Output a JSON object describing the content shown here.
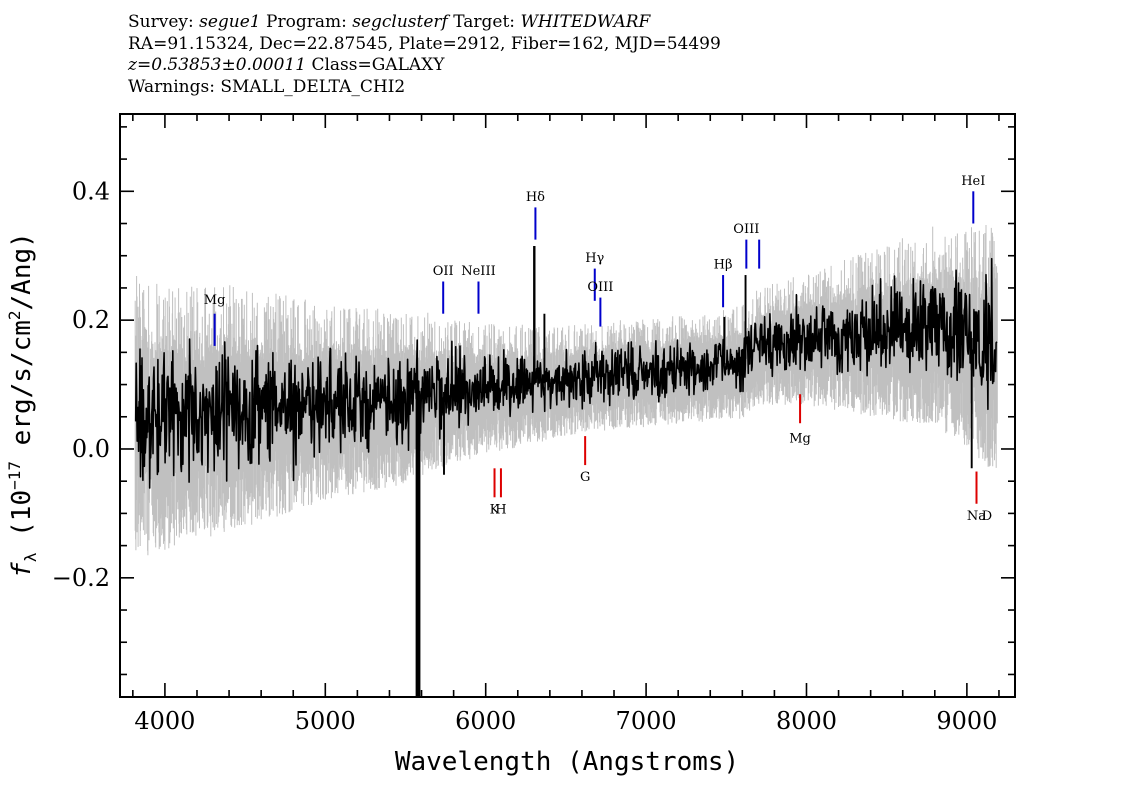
{
  "header": {
    "line1": {
      "survey_label": "Survey: ",
      "survey": "segue1",
      "program_label": " Program: ",
      "program": "segclusterf",
      "target_label": " Target: ",
      "target": "WHITEDWARF"
    },
    "line2": "RA=91.15324, Dec=22.87545, Plate=2912, Fiber=162, MJD=54499",
    "line3": {
      "z": "z=0.53853±0.00011",
      "class": " Class=GALAXY"
    },
    "line4": "Warnings: SMALL_DELTA_CHI2"
  },
  "chart_data": {
    "type": "line",
    "xlabel": "Wavelength (Angstroms)",
    "ylabel_prefix": "f",
    "ylabel_sub": "λ",
    "ylabel_mid": " (10",
    "ylabel_exp": "−17",
    "ylabel_unit": " erg/s/cm",
    "ylabel_unit_exp": "2",
    "ylabel_suffix": "/Ang)",
    "xlim": [
      3720,
      9300
    ],
    "ylim": [
      -0.385,
      0.52
    ],
    "x_ticks": [
      4000,
      5000,
      6000,
      7000,
      8000,
      9000
    ],
    "x_tick_labels": [
      "4000",
      "5000",
      "6000",
      "7000",
      "8000",
      "9000"
    ],
    "y_ticks": [
      -0.2,
      0.0,
      0.2,
      0.4
    ],
    "y_tick_labels": [
      "−0.2",
      "0.0",
      "0.2",
      "0.4"
    ],
    "spectrum_range": [
      3815,
      9190
    ],
    "continuum_points": [
      [
        3815,
        0.05
      ],
      [
        4200,
        0.06
      ],
      [
        4800,
        0.07
      ],
      [
        5400,
        0.08
      ],
      [
        5800,
        0.09
      ],
      [
        6300,
        0.1
      ],
      [
        6800,
        0.115
      ],
      [
        7300,
        0.125
      ],
      [
        7600,
        0.135
      ],
      [
        7700,
        0.16
      ],
      [
        8000,
        0.17
      ],
      [
        8400,
        0.18
      ],
      [
        8800,
        0.19
      ],
      [
        9190,
        0.16
      ]
    ],
    "noise_points": [
      [
        3815,
        0.13
      ],
      [
        4500,
        0.11
      ],
      [
        5000,
        0.09
      ],
      [
        5500,
        0.08
      ],
      [
        6000,
        0.06
      ],
      [
        6500,
        0.05
      ],
      [
        7000,
        0.05
      ],
      [
        7500,
        0.05
      ],
      [
        8000,
        0.06
      ],
      [
        8500,
        0.08
      ],
      [
        9000,
        0.1
      ],
      [
        9190,
        0.12
      ]
    ],
    "features": [
      {
        "x": 5578,
        "y": -0.385,
        "width": 3
      },
      {
        "x": 6303,
        "y": 0.315,
        "width": 1.5
      },
      {
        "x": 6366,
        "y": 0.21,
        "width": 1.2
      },
      {
        "x": 5740,
        "y": -0.04,
        "width": 1.2
      },
      {
        "x": 7488,
        "y": 0.205,
        "width": 1.2
      },
      {
        "x": 7620,
        "y": 0.27,
        "width": 1.2
      },
      {
        "x": 9030,
        "y": -0.03,
        "width": 1.2
      }
    ],
    "emission_lines": [
      {
        "label": "Mg",
        "x": 4310,
        "y0": 0.16,
        "y1": 0.21,
        "label_y": 0.225
      },
      {
        "label": "OII",
        "x": 5735,
        "y0": 0.21,
        "y1": 0.26,
        "label_y": 0.27
      },
      {
        "label": "NeIII",
        "x": 5955,
        "y0": 0.21,
        "y1": 0.26,
        "label_y": 0.27
      },
      {
        "label": "Hδ",
        "x": 6310,
        "y0": 0.325,
        "y1": 0.375,
        "label_y": 0.385
      },
      {
        "label": "Hγ",
        "x": 6680,
        "y0": 0.23,
        "y1": 0.28,
        "label_y": 0.29
      },
      {
        "label": "OIII",
        "x": 6715,
        "y0": 0.19,
        "y1": 0.235,
        "label_y": 0.245
      },
      {
        "label": "Hβ",
        "x": 7480,
        "y0": 0.22,
        "y1": 0.27,
        "label_y": 0.28
      },
      {
        "label": "OIII",
        "x": 7625,
        "y0": 0.28,
        "y1": 0.325,
        "label_y": 0.335
      },
      {
        "label": "OIII",
        "x": 7705,
        "y0": 0.28,
        "y1": 0.325,
        "label_y": null
      },
      {
        "label": "HeI",
        "x": 9040,
        "y0": 0.35,
        "y1": 0.4,
        "label_y": 0.41
      }
    ],
    "absorption_lines": [
      {
        "label": "K",
        "x": 6055,
        "y0": -0.03,
        "y1": -0.075,
        "label_y": -0.1
      },
      {
        "label": "H",
        "x": 6095,
        "y0": -0.03,
        "y1": -0.075,
        "label_y": -0.1
      },
      {
        "label": "G",
        "x": 6620,
        "y0": 0.02,
        "y1": -0.025,
        "label_y": -0.05
      },
      {
        "label": "Mg",
        "x": 7960,
        "y0": 0.085,
        "y1": 0.04,
        "label_y": 0.01
      },
      {
        "label": "Na",
        "x": 9060,
        "y0": -0.035,
        "y1": -0.085,
        "label_y": -0.11
      },
      {
        "label": "D",
        "x": 9125,
        "y0": null,
        "y1": null,
        "label_y": -0.11
      }
    ],
    "colors": {
      "flux": "#000000",
      "error": "#c0c0c0",
      "emission": "#0000cc",
      "absorption": "#dd0000",
      "axes": "#000000"
    }
  }
}
